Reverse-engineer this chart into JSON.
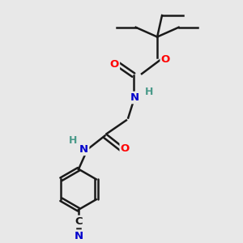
{
  "background_color": "#e8e8e8",
  "bond_color": "#1a1a1a",
  "atom_colors": {
    "O": "#ff0000",
    "N": "#0000cc",
    "C": "#1a1a1a",
    "H": "#4a9a8a"
  },
  "figsize": [
    3.0,
    3.0
  ],
  "dpi": 100
}
